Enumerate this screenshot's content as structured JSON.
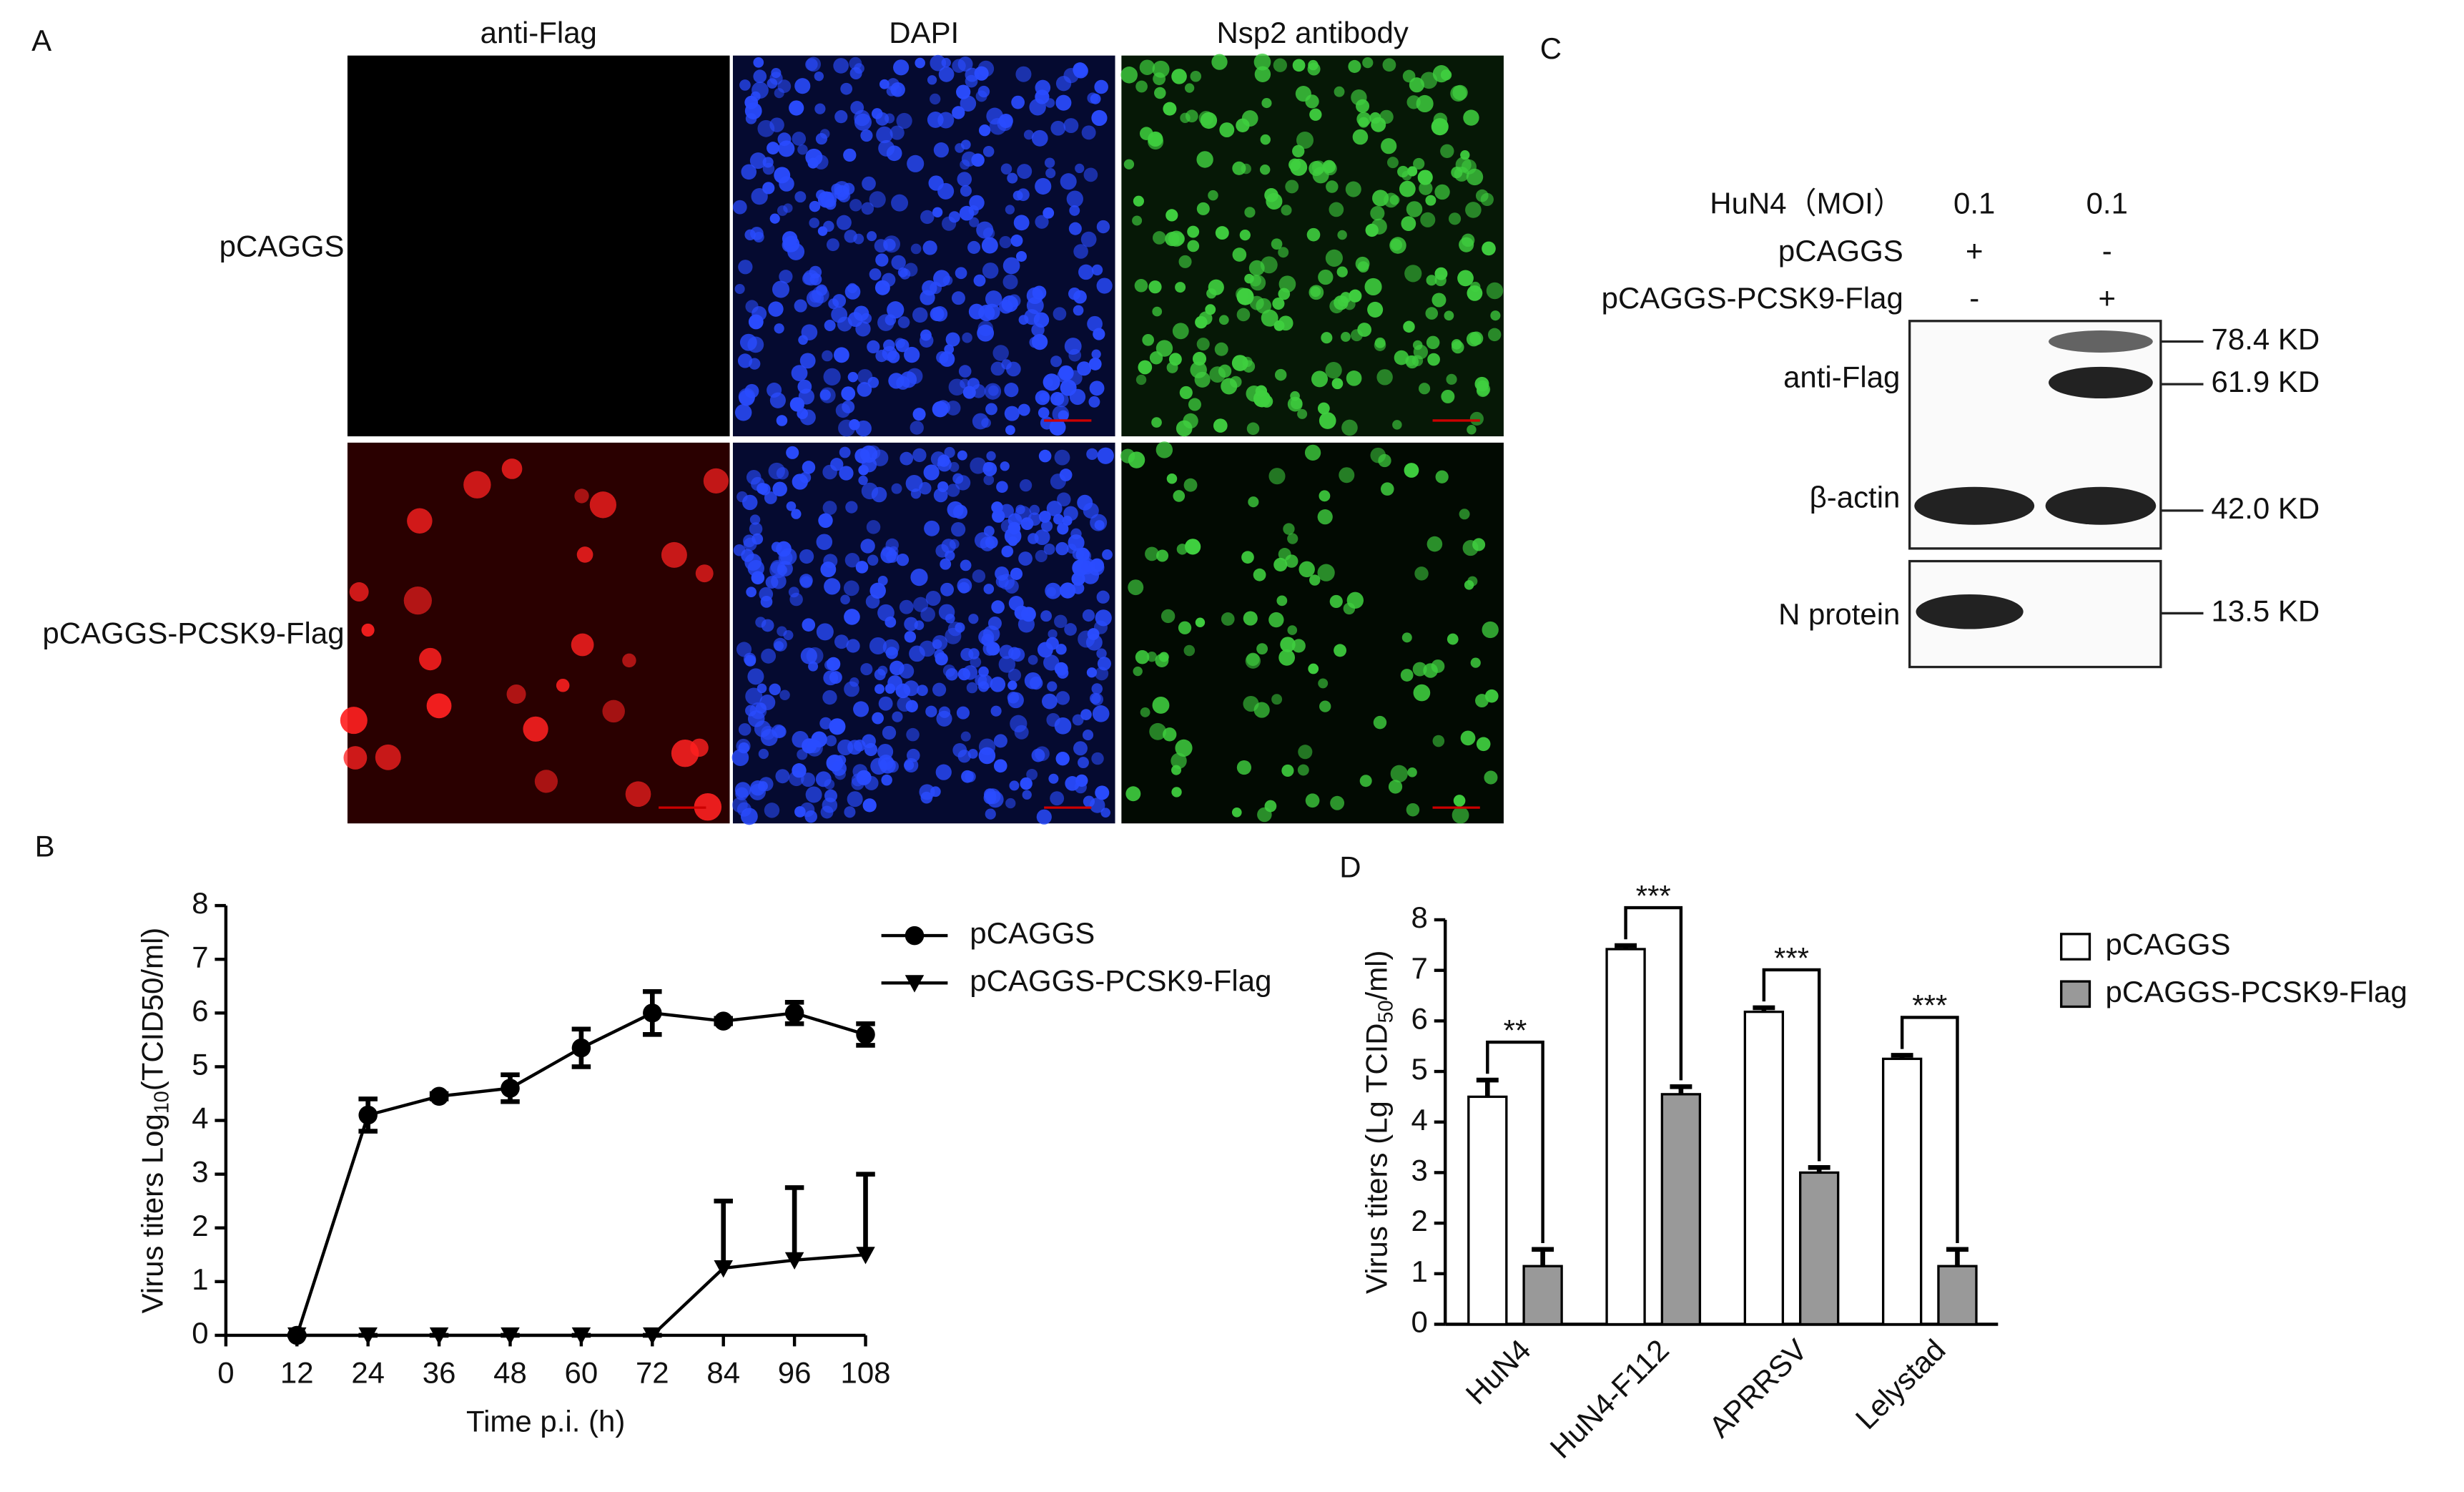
{
  "panel_labels": [
    "A",
    "B",
    "C",
    "D"
  ],
  "panel_a": {
    "columns": [
      "anti-Flag",
      "DAPI",
      "Nsp2 antibody"
    ],
    "rows": [
      "pCAGGS",
      "pCAGGS-PCSK9-Flag"
    ]
  },
  "panel_c": {
    "conditions": [
      {
        "label": "HuN4（MOI）",
        "values": [
          "0.1",
          "0.1"
        ]
      },
      {
        "label": "pCAGGS",
        "values": [
          "+",
          "-"
        ]
      },
      {
        "label": "pCAGGS-PCSK9-Flag",
        "values": [
          "-",
          "+"
        ]
      }
    ],
    "blots": [
      "anti-Flag",
      "β-actin",
      "N protein"
    ],
    "markers": [
      "78.4 KD",
      "61.9 KD",
      "42.0 KD",
      "13.5 KD"
    ]
  },
  "chart_data": [
    {
      "type": "line",
      "ylabel": {
        "text": "Virus titers Log",
        "sub": "10",
        "rest": "(TCID50/ml)"
      },
      "xlabel": "Time p.i. (h)",
      "xlim": [
        0,
        108
      ],
      "xticks": [
        0,
        12,
        24,
        36,
        48,
        60,
        72,
        84,
        96,
        108
      ],
      "ylim": [
        0,
        8
      ],
      "yticks": [
        0,
        1,
        2,
        3,
        4,
        5,
        6,
        7,
        8
      ],
      "series": [
        {
          "name": "pCAGGS",
          "color": "#000000",
          "marker": "circle",
          "error_direction": "both",
          "x": [
            12,
            24,
            36,
            48,
            60,
            72,
            84,
            96,
            108
          ],
          "values": [
            0,
            4.1,
            4.45,
            4.6,
            5.35,
            6.0,
            5.85,
            6.0,
            5.6
          ],
          "errors": [
            0,
            0.3,
            0.05,
            0.25,
            0.35,
            0.4,
            0.05,
            0.2,
            0.2
          ]
        },
        {
          "name": "pCAGGS-PCSK9-Flag",
          "color": "#000000",
          "marker": "triangle-down",
          "error_direction": "up",
          "x": [
            12,
            24,
            36,
            48,
            60,
            72,
            84,
            96,
            108
          ],
          "values": [
            0,
            0,
            0,
            0,
            0,
            0,
            1.25,
            1.4,
            1.5
          ],
          "errors": [
            0,
            0,
            0,
            0,
            0,
            0,
            1.25,
            1.35,
            1.5
          ]
        }
      ]
    },
    {
      "type": "bar",
      "ylabel": {
        "text": "Virus titers (Lg TCID",
        "sub": "50",
        "rest": "/ml)"
      },
      "categories": [
        "HuN4",
        "HuN4-F112",
        "APRRSV",
        "Lelystad"
      ],
      "ylim": [
        0,
        8
      ],
      "yticks": [
        0,
        1,
        2,
        3,
        4,
        5,
        6,
        7,
        8
      ],
      "significance": [
        "**",
        "***",
        "***",
        "***"
      ],
      "series": [
        {
          "name": "pCAGGS",
          "color": "#ffffff",
          "values": [
            4.5,
            7.42,
            6.18,
            5.25
          ],
          "errors": [
            0.33,
            0.07,
            0.08,
            0.07
          ]
        },
        {
          "name": "pCAGGS-PCSK9-Flag",
          "color": "#999999",
          "values": [
            1.15,
            4.55,
            3.0,
            1.15
          ],
          "errors": [
            0.33,
            0.15,
            0.1,
            0.33
          ]
        }
      ]
    }
  ]
}
